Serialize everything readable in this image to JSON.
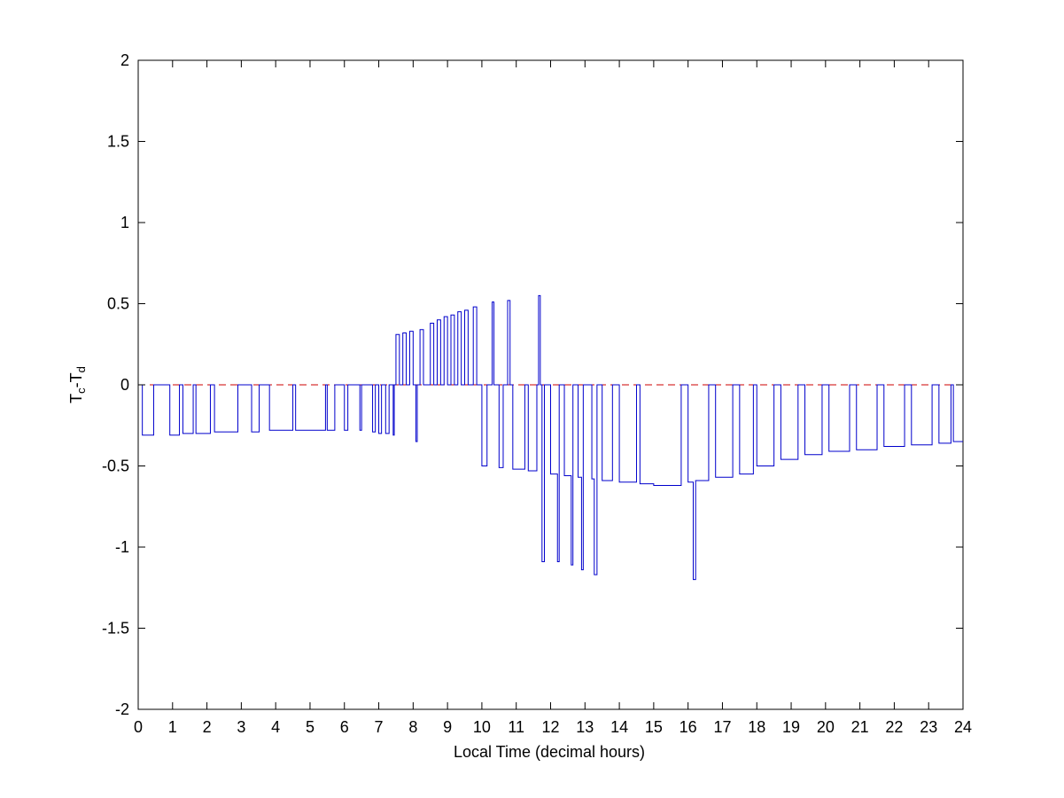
{
  "chart_data": {
    "type": "line",
    "xlabel": "Local Time (decimal hours)",
    "ylabel": {
      "main": "T",
      "sub1": "c",
      "dash": "-",
      "main2": "T",
      "sub2": "d"
    },
    "xlim": [
      0,
      24
    ],
    "ylim": [
      -2,
      2
    ],
    "xticks": [
      "0",
      "1",
      "2",
      "3",
      "4",
      "5",
      "6",
      "7",
      "8",
      "9",
      "10",
      "11",
      "12",
      "13",
      "14",
      "15",
      "16",
      "17",
      "18",
      "19",
      "20",
      "21",
      "22",
      "23",
      "24"
    ],
    "yticks": [
      "-2",
      "-1.5",
      "-1",
      "-0.5",
      "0",
      "0.5",
      "1",
      "1.5",
      "2"
    ],
    "grid": false,
    "reference_line": {
      "y": 0,
      "color": "#cc0000",
      "style": "dashed"
    },
    "series": [
      {
        "color": "#0000cc",
        "segments": [
          [
            0.05,
            0
          ],
          [
            0.12,
            0
          ],
          [
            0.12,
            -0.31
          ],
          [
            0.45,
            -0.31
          ],
          [
            0.45,
            0
          ],
          [
            0.92,
            0
          ],
          [
            0.92,
            -0.31
          ],
          [
            1.2,
            -0.31
          ],
          [
            1.2,
            0
          ],
          [
            1.3,
            0
          ],
          [
            1.3,
            -0.3
          ],
          [
            1.6,
            -0.3
          ],
          [
            1.6,
            0
          ],
          [
            1.68,
            0
          ],
          [
            1.68,
            -0.3
          ],
          [
            2.1,
            -0.3
          ],
          [
            2.1,
            0
          ],
          [
            2.22,
            0
          ],
          [
            2.22,
            -0.29
          ],
          [
            2.9,
            -0.29
          ],
          [
            2.9,
            0
          ],
          [
            3.3,
            0
          ],
          [
            3.3,
            -0.29
          ],
          [
            3.52,
            -0.29
          ],
          [
            3.52,
            0
          ],
          [
            3.82,
            0
          ],
          [
            3.82,
            -0.28
          ],
          [
            4.5,
            -0.28
          ],
          [
            4.5,
            0
          ],
          [
            4.58,
            0
          ],
          [
            4.58,
            -0.28
          ],
          [
            5.45,
            -0.28
          ],
          [
            5.45,
            0
          ],
          [
            5.5,
            0
          ],
          [
            5.5,
            -0.28
          ],
          [
            5.72,
            -0.28
          ],
          [
            5.72,
            0
          ],
          [
            6.0,
            0
          ],
          [
            6.0,
            -0.28
          ],
          [
            6.1,
            -0.28
          ],
          [
            6.1,
            0
          ],
          [
            6.45,
            0
          ],
          [
            6.45,
            -0.28
          ],
          [
            6.5,
            -0.28
          ],
          [
            6.5,
            0
          ],
          [
            6.82,
            0
          ],
          [
            6.82,
            -0.29
          ],
          [
            6.9,
            -0.29
          ],
          [
            6.9,
            0
          ],
          [
            7.0,
            0
          ],
          [
            7.0,
            -0.3
          ],
          [
            7.08,
            -0.3
          ],
          [
            7.08,
            0
          ],
          [
            7.2,
            0
          ],
          [
            7.2,
            -0.3
          ],
          [
            7.3,
            -0.3
          ],
          [
            7.3,
            0
          ],
          [
            7.42,
            0
          ],
          [
            7.42,
            -0.31
          ],
          [
            7.45,
            -0.31
          ],
          [
            7.45,
            0
          ],
          [
            7.5,
            0
          ],
          [
            7.5,
            0.31
          ],
          [
            7.6,
            0.31
          ],
          [
            7.6,
            0
          ],
          [
            7.7,
            0
          ],
          [
            7.7,
            0.32
          ],
          [
            7.8,
            0.32
          ],
          [
            7.8,
            0
          ],
          [
            7.9,
            0
          ],
          [
            7.9,
            0.33
          ],
          [
            8.0,
            0.33
          ],
          [
            8.0,
            0
          ],
          [
            8.08,
            0
          ],
          [
            8.08,
            -0.35
          ],
          [
            8.12,
            -0.35
          ],
          [
            8.12,
            0
          ],
          [
            8.2,
            0
          ],
          [
            8.2,
            0.34
          ],
          [
            8.3,
            0.34
          ],
          [
            8.3,
            0
          ],
          [
            8.5,
            0
          ],
          [
            8.5,
            0.38
          ],
          [
            8.6,
            0.38
          ],
          [
            8.6,
            0
          ],
          [
            8.7,
            0
          ],
          [
            8.7,
            0.4
          ],
          [
            8.8,
            0.4
          ],
          [
            8.8,
            0
          ],
          [
            8.9,
            0
          ],
          [
            8.9,
            0.42
          ],
          [
            9.0,
            0.42
          ],
          [
            9.0,
            0
          ],
          [
            9.1,
            0
          ],
          [
            9.1,
            0.43
          ],
          [
            9.2,
            0.43
          ],
          [
            9.2,
            0
          ],
          [
            9.3,
            0
          ],
          [
            9.3,
            0.45
          ],
          [
            9.4,
            0.45
          ],
          [
            9.4,
            0
          ],
          [
            9.5,
            0
          ],
          [
            9.5,
            0.46
          ],
          [
            9.6,
            0.46
          ],
          [
            9.6,
            0
          ],
          [
            9.75,
            0
          ],
          [
            9.75,
            0.48
          ],
          [
            9.85,
            0.48
          ],
          [
            9.85,
            0
          ],
          [
            10.0,
            0
          ],
          [
            10.0,
            -0.5
          ],
          [
            10.15,
            -0.5
          ],
          [
            10.15,
            0
          ],
          [
            10.3,
            0
          ],
          [
            10.3,
            0.51
          ],
          [
            10.35,
            0.51
          ],
          [
            10.35,
            0
          ],
          [
            10.5,
            0
          ],
          [
            10.5,
            -0.51
          ],
          [
            10.62,
            -0.51
          ],
          [
            10.62,
            0
          ],
          [
            10.75,
            0
          ],
          [
            10.75,
            0.52
          ],
          [
            10.82,
            0.52
          ],
          [
            10.82,
            0
          ],
          [
            10.9,
            0
          ],
          [
            10.9,
            -0.52
          ],
          [
            11.25,
            -0.52
          ],
          [
            11.25,
            0
          ],
          [
            11.35,
            0
          ],
          [
            11.35,
            -0.53
          ],
          [
            11.6,
            -0.53
          ],
          [
            11.6,
            0
          ],
          [
            11.65,
            0
          ],
          [
            11.65,
            0.55
          ],
          [
            11.7,
            0.55
          ],
          [
            11.7,
            0
          ],
          [
            11.75,
            0
          ],
          [
            11.75,
            -1.09
          ],
          [
            11.82,
            -1.09
          ],
          [
            11.82,
            0
          ],
          [
            12.0,
            0
          ],
          [
            12.0,
            -0.55
          ],
          [
            12.2,
            -0.55
          ],
          [
            12.2,
            -1.09
          ],
          [
            12.25,
            -1.09
          ],
          [
            12.25,
            0
          ],
          [
            12.4,
            0
          ],
          [
            12.4,
            -0.56
          ],
          [
            12.6,
            -0.56
          ],
          [
            12.6,
            -1.11
          ],
          [
            12.65,
            -1.11
          ],
          [
            12.65,
            0
          ],
          [
            12.8,
            0
          ],
          [
            12.8,
            -0.57
          ],
          [
            12.9,
            -0.57
          ],
          [
            12.9,
            -1.14
          ],
          [
            12.95,
            -1.14
          ],
          [
            12.95,
            0
          ],
          [
            13.2,
            0
          ],
          [
            13.2,
            -0.58
          ],
          [
            13.27,
            -0.58
          ],
          [
            13.27,
            -1.17
          ],
          [
            13.35,
            -1.17
          ],
          [
            13.35,
            0
          ],
          [
            13.5,
            0
          ],
          [
            13.5,
            -0.59
          ],
          [
            13.8,
            -0.59
          ],
          [
            13.8,
            0
          ],
          [
            14.0,
            0
          ],
          [
            14.0,
            -0.6
          ],
          [
            14.5,
            -0.6
          ],
          [
            14.5,
            0
          ],
          [
            14.6,
            0
          ],
          [
            14.6,
            -0.61
          ],
          [
            15.0,
            -0.61
          ],
          [
            15.0,
            -0.62
          ],
          [
            15.8,
            -0.62
          ],
          [
            15.8,
            0
          ],
          [
            16.0,
            0
          ],
          [
            16.0,
            -0.6
          ],
          [
            16.15,
            -0.6
          ],
          [
            16.15,
            -1.2
          ],
          [
            16.22,
            -1.2
          ],
          [
            16.22,
            -0.59
          ],
          [
            16.6,
            -0.59
          ],
          [
            16.6,
            0
          ],
          [
            16.8,
            0
          ],
          [
            16.8,
            -0.57
          ],
          [
            17.3,
            -0.57
          ],
          [
            17.3,
            0
          ],
          [
            17.5,
            0
          ],
          [
            17.5,
            -0.55
          ],
          [
            17.9,
            -0.55
          ],
          [
            17.9,
            0
          ],
          [
            18.0,
            0
          ],
          [
            18.0,
            -0.5
          ],
          [
            18.5,
            -0.5
          ],
          [
            18.5,
            0
          ],
          [
            18.7,
            0
          ],
          [
            18.7,
            -0.46
          ],
          [
            19.2,
            -0.46
          ],
          [
            19.2,
            0
          ],
          [
            19.4,
            0
          ],
          [
            19.4,
            -0.43
          ],
          [
            19.9,
            -0.43
          ],
          [
            19.9,
            0
          ],
          [
            20.1,
            0
          ],
          [
            20.1,
            -0.41
          ],
          [
            20.7,
            -0.41
          ],
          [
            20.7,
            0
          ],
          [
            20.9,
            0
          ],
          [
            20.9,
            -0.4
          ],
          [
            21.5,
            -0.4
          ],
          [
            21.5,
            0
          ],
          [
            21.7,
            0
          ],
          [
            21.7,
            -0.38
          ],
          [
            22.3,
            -0.38
          ],
          [
            22.3,
            0
          ],
          [
            22.5,
            0
          ],
          [
            22.5,
            -0.37
          ],
          [
            23.1,
            -0.37
          ],
          [
            23.1,
            0
          ],
          [
            23.3,
            0
          ],
          [
            23.3,
            -0.36
          ],
          [
            23.65,
            -0.36
          ],
          [
            23.65,
            0
          ],
          [
            23.72,
            0
          ],
          [
            23.72,
            -0.35
          ],
          [
            24.0,
            -0.35
          ]
        ]
      }
    ]
  }
}
